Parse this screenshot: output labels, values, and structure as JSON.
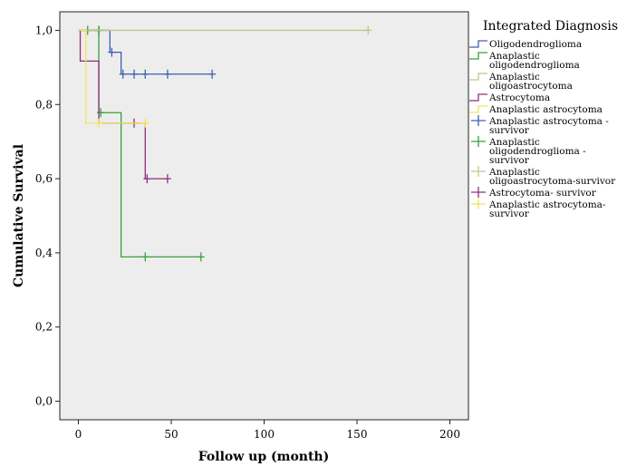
{
  "chart_data": {
    "type": "line",
    "subtype": "kaplan-meier",
    "xlabel": "Follow up (month)",
    "ylabel": "Cumulative Survival",
    "xlim": [
      -10,
      210
    ],
    "ylim": [
      -0.05,
      1.05
    ],
    "x_ticks": [
      0,
      50,
      100,
      150,
      200
    ],
    "x_tick_labels": [
      "0",
      "50",
      "100",
      "150",
      "200"
    ],
    "y_ticks": [
      0,
      0.2,
      0.4,
      0.6,
      0.8,
      1.0
    ],
    "y_tick_labels": [
      "0,0",
      "0,2",
      "0,4",
      "0,6",
      "0,8",
      "1,0"
    ],
    "grid": false,
    "plot_background": "#ededed",
    "legend": {
      "title": "Integrated Diagnosis",
      "placement": "right",
      "entries": [
        {
          "label": [
            "Oligodendroglioma"
          ],
          "color": "#3f5fb0",
          "kind": "step"
        },
        {
          "label": [
            "Anaplastic",
            "oligodendroglioma"
          ],
          "color": "#3a9e3a",
          "kind": "step"
        },
        {
          "label": [
            "Anaplastic",
            "oligoastrocytoma"
          ],
          "color": "#c8c48a",
          "kind": "step"
        },
        {
          "label": [
            "Astrocytoma"
          ],
          "color": "#8e2f7e",
          "kind": "step"
        },
        {
          "label": [
            "Anaplastic astrocytoma"
          ],
          "color": "#f2e35a",
          "kind": "step"
        },
        {
          "label": [
            "Anaplastic astrocytoma -",
            "survivor"
          ],
          "color": "#3f5fb0",
          "kind": "censor"
        },
        {
          "label": [
            "Anaplastic",
            "oligodendroglioma -",
            "survivor"
          ],
          "color": "#3a9e3a",
          "kind": "censor"
        },
        {
          "label": [
            "Anaplastic",
            "oligoastrocytoma-survivor"
          ],
          "color": "#c8c48a",
          "kind": "censor"
        },
        {
          "label": [
            "Astrocytoma- survivor"
          ],
          "color": "#8e2f7e",
          "kind": "censor"
        },
        {
          "label": [
            "Anaplastic astrocytoma-",
            "survivor"
          ],
          "color": "#f2e35a",
          "kind": "censor"
        }
      ]
    },
    "series": [
      {
        "color": "#3f5fb0",
        "steps": [
          [
            0,
            1.0
          ],
          [
            17,
            0.941
          ],
          [
            23,
            0.882
          ],
          [
            72,
            0.882
          ]
        ],
        "censored": [
          [
            11,
            1.0
          ],
          [
            18,
            0.941
          ],
          [
            24,
            0.882
          ],
          [
            30,
            0.882
          ],
          [
            36,
            0.882
          ],
          [
            48,
            0.882
          ],
          [
            72,
            0.882
          ]
        ]
      },
      {
        "color": "#3a9e3a",
        "steps": [
          [
            0,
            1.0
          ],
          [
            11,
            0.778
          ],
          [
            23,
            0.389
          ],
          [
            66,
            0.389
          ]
        ],
        "censored": [
          [
            5,
            1.0
          ],
          [
            11,
            1.0
          ],
          [
            12,
            0.778
          ],
          [
            36,
            0.389
          ],
          [
            66,
            0.389
          ]
        ]
      },
      {
        "color": "#c8c48a",
        "steps": [
          [
            0,
            1.0
          ],
          [
            156,
            1.0
          ]
        ],
        "censored": [
          [
            156,
            1.0
          ]
        ]
      },
      {
        "color": "#8e2f7e",
        "steps": [
          [
            0,
            1.0
          ],
          [
            1,
            0.917
          ],
          [
            11,
            0.75
          ],
          [
            36,
            0.6
          ],
          [
            48,
            0.6
          ]
        ],
        "censored": [
          [
            30,
            0.75
          ],
          [
            37,
            0.6
          ],
          [
            48,
            0.6
          ]
        ]
      },
      {
        "color": "#f2e35a",
        "steps": [
          [
            0,
            1.0
          ],
          [
            4,
            0.75
          ],
          [
            36,
            0.75
          ]
        ],
        "censored": [
          [
            11,
            0.75
          ],
          [
            36,
            0.75
          ]
        ]
      }
    ]
  }
}
